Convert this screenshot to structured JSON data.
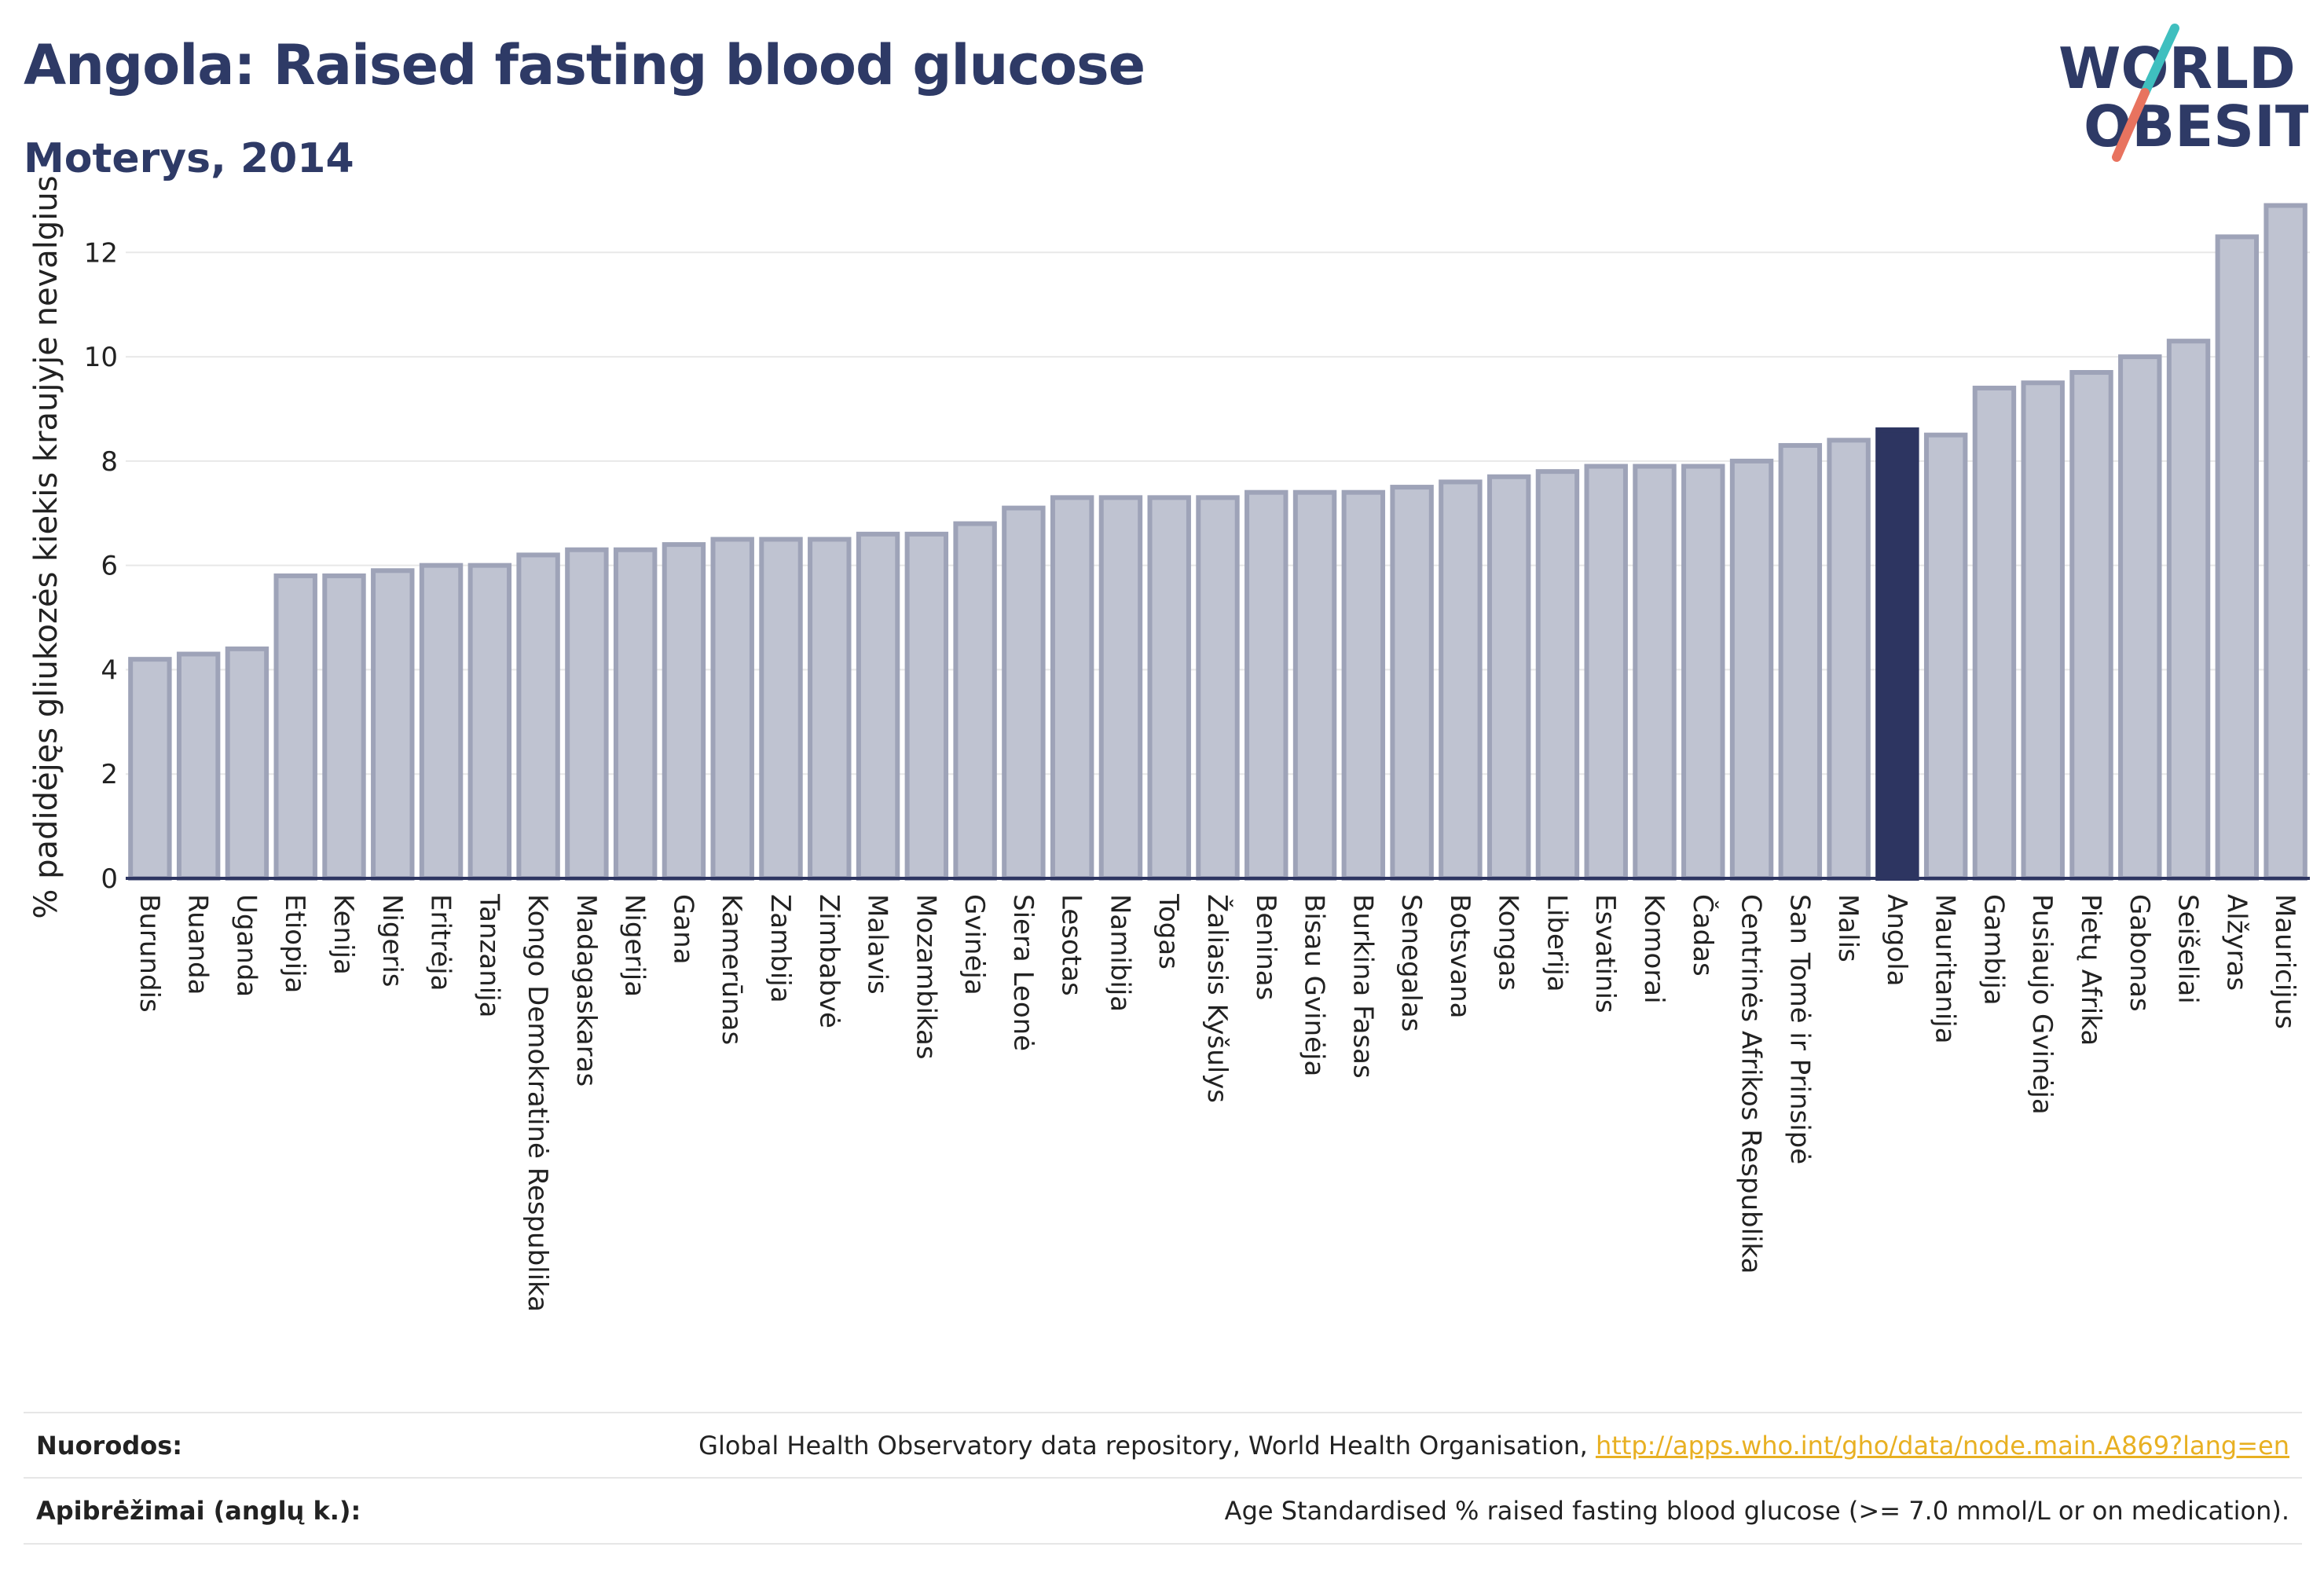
{
  "header": {
    "title": "Angola: Raised fasting blood glucose",
    "subtitle": "Moterys, 2014"
  },
  "logo": {
    "line1": "WORLD",
    "line2": "OBESITY",
    "colors": {
      "text": "#2e3a66",
      "slash_teal": "#3fbfbf",
      "slash_coral": "#e8735f"
    }
  },
  "chart_data": {
    "type": "bar",
    "title": "Angola: Raised fasting blood glucose",
    "subtitle": "Moterys, 2014",
    "ylabel": "% padidėjęs gliukozės kiekis kraujyje nevalgius",
    "xlabel": "",
    "ylim": [
      0,
      13.3
    ],
    "yticks": [
      0,
      2,
      4,
      6,
      8,
      10,
      12
    ],
    "grid": true,
    "highlight": "Angola",
    "colors": {
      "bar": "#bfc3d1",
      "bar_edge": "#9ea3b8",
      "highlight": "#2d3561",
      "grid": "#e8e8e8",
      "axis": "#2d3561"
    },
    "categories": [
      "Burundis",
      "Ruanda",
      "Uganda",
      "Etiopija",
      "Kenija",
      "Nigeris",
      "Eritrėja",
      "Tanzanija",
      "Kongo Demokratinė Respublika",
      "Madagaskaras",
      "Nigerija",
      "Gana",
      "Kamerūnas",
      "Zambija",
      "Zimbabvė",
      "Malavis",
      "Mozambikas",
      "Gvinėja",
      "Siera Leonė",
      "Lesotas",
      "Namibija",
      "Togas",
      "Žaliasis Kyšulys",
      "Beninas",
      "Bisau Gvinėja",
      "Burkina Fasas",
      "Senegalas",
      "Botsvana",
      "Kongas",
      "Liberija",
      "Esvatinis",
      "Komorai",
      "Čadas",
      "Centrinės Afrikos Respublika",
      "San Tomė ir Prinsipė",
      "Malis",
      "Angola",
      "Mauritanija",
      "Gambija",
      "Pusiaujo Gvinėja",
      "Pietų Afrika",
      "Gabonas",
      "Seišeliai",
      "Alžyras",
      "Mauricijus"
    ],
    "values": [
      4.2,
      4.3,
      4.4,
      5.8,
      5.8,
      5.9,
      6.0,
      6.0,
      6.2,
      6.3,
      6.3,
      6.4,
      6.5,
      6.5,
      6.5,
      6.6,
      6.6,
      6.8,
      7.1,
      7.3,
      7.3,
      7.3,
      7.3,
      7.4,
      7.4,
      7.4,
      7.5,
      7.6,
      7.7,
      7.8,
      7.9,
      7.9,
      7.9,
      8.0,
      8.3,
      8.4,
      8.6,
      8.5,
      9.4,
      9.5,
      9.7,
      10.0,
      10.3,
      12.3,
      12.9
    ]
  },
  "footer": {
    "sources_label": "Nuorodos:",
    "sources_text": "Global Health Observatory data repository, World Health Organisation, ",
    "sources_link": "http://apps.who.int/gho/data/node.main.A869?lang=en",
    "definition_label": "Apibrėžimai (anglų k.):",
    "definition_text": "Age Standardised % raised fasting blood glucose (>= 7.0 mmol/L or on medication)."
  }
}
